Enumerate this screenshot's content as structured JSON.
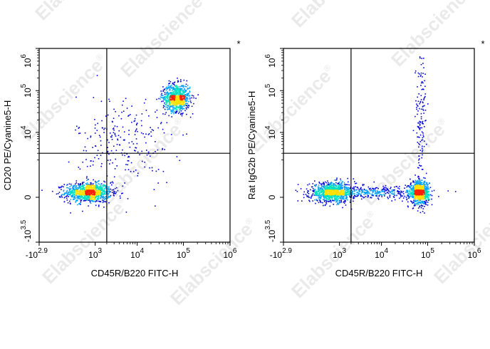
{
  "watermark": {
    "text": "Elabscience",
    "mark": "®"
  },
  "chart_data": [
    {
      "type": "scatter",
      "style": "flow-cytometry density dot plot (pseudocolor)",
      "title": "",
      "xlabel": "CD45R/B220 FITC-H",
      "ylabel": "CD20 PE/Cyanine5-H",
      "corner_mark": "*",
      "x_ticks": [
        {
          "base": "-10",
          "exp": "2.9",
          "value": -794
        },
        {
          "base": "10",
          "exp": "3",
          "value": 1000
        },
        {
          "base": "10",
          "exp": "4",
          "value": 10000
        },
        {
          "base": "10",
          "exp": "5",
          "value": 100000
        },
        {
          "base": "10",
          "exp": "6",
          "value": 1000000
        }
      ],
      "y_ticks": [
        {
          "base": "-10",
          "exp": "3.5",
          "value": -3162
        },
        {
          "base": "0",
          "exp": "",
          "value": 0
        },
        {
          "base": "10",
          "exp": "4",
          "value": 10000
        },
        {
          "base": "10",
          "exp": "5",
          "value": 100000
        },
        {
          "base": "10",
          "exp": "6",
          "value": 1000000
        }
      ],
      "scale": "biexponential",
      "xlim": [
        -794,
        1000000
      ],
      "ylim": [
        -3162,
        1000000
      ],
      "gate_x": 2000,
      "gate_y": 3000,
      "colors": [
        "#0000dd",
        "#00a0ff",
        "#00e0c0",
        "#ffe000",
        "#ff2000"
      ],
      "populations": [
        {
          "name": "CD20-CD45R-",
          "x": 600,
          "y": 100,
          "count": 1000,
          "spread_x": 0.12,
          "spread_y": 0.05
        },
        {
          "name": "CD20+CD45R+",
          "x": 70000,
          "y": 70000,
          "count": 800,
          "spread_x": 0.07,
          "spread_y": 0.07
        },
        {
          "name": "diagonal-transition",
          "x": 5000,
          "y": 6000,
          "count": 250,
          "spread_x": 0.25,
          "spread_y": 0.25
        }
      ]
    },
    {
      "type": "scatter",
      "style": "flow-cytometry density dot plot (pseudocolor)",
      "title": "",
      "xlabel": "CD45R/B220 FITC-H",
      "ylabel": "Rat IgG2b PE/Cyanine5-H",
      "corner_mark": "*",
      "x_ticks": [
        {
          "base": "-10",
          "exp": "2.9",
          "value": -794
        },
        {
          "base": "10",
          "exp": "3",
          "value": 1000
        },
        {
          "base": "10",
          "exp": "4",
          "value": 10000
        },
        {
          "base": "10",
          "exp": "5",
          "value": 100000
        },
        {
          "base": "10",
          "exp": "6",
          "value": 1000000
        }
      ],
      "y_ticks": [
        {
          "base": "-10",
          "exp": "3.5",
          "value": -3162
        },
        {
          "base": "0",
          "exp": "",
          "value": 0
        },
        {
          "base": "10",
          "exp": "4",
          "value": 10000
        },
        {
          "base": "10",
          "exp": "5",
          "value": 100000
        },
        {
          "base": "10",
          "exp": "6",
          "value": 1000000
        }
      ],
      "scale": "biexponential",
      "xlim": [
        -794,
        1000000
      ],
      "ylim": [
        -3162,
        1000000
      ],
      "gate_x": 2000,
      "gate_y": 3000,
      "colors": [
        "#0000dd",
        "#00a0ff",
        "#00e0c0",
        "#ffe000",
        "#ff2000"
      ],
      "populations": [
        {
          "name": "CD45R-",
          "x": 600,
          "y": 100,
          "count": 950,
          "spread_x": 0.12,
          "spread_y": 0.05
        },
        {
          "name": "CD45R+",
          "x": 65000,
          "y": 100,
          "count": 800,
          "spread_x": 0.05,
          "spread_y": 0.06
        },
        {
          "name": "bridge",
          "x": 8000,
          "y": 100,
          "count": 300,
          "spread_x": 0.25,
          "spread_y": 0.03
        },
        {
          "name": "CD45R+ streak",
          "x": 70000,
          "y": 20000,
          "count": 140,
          "spread_x": 0.03,
          "spread_y": 0.35
        }
      ]
    }
  ]
}
